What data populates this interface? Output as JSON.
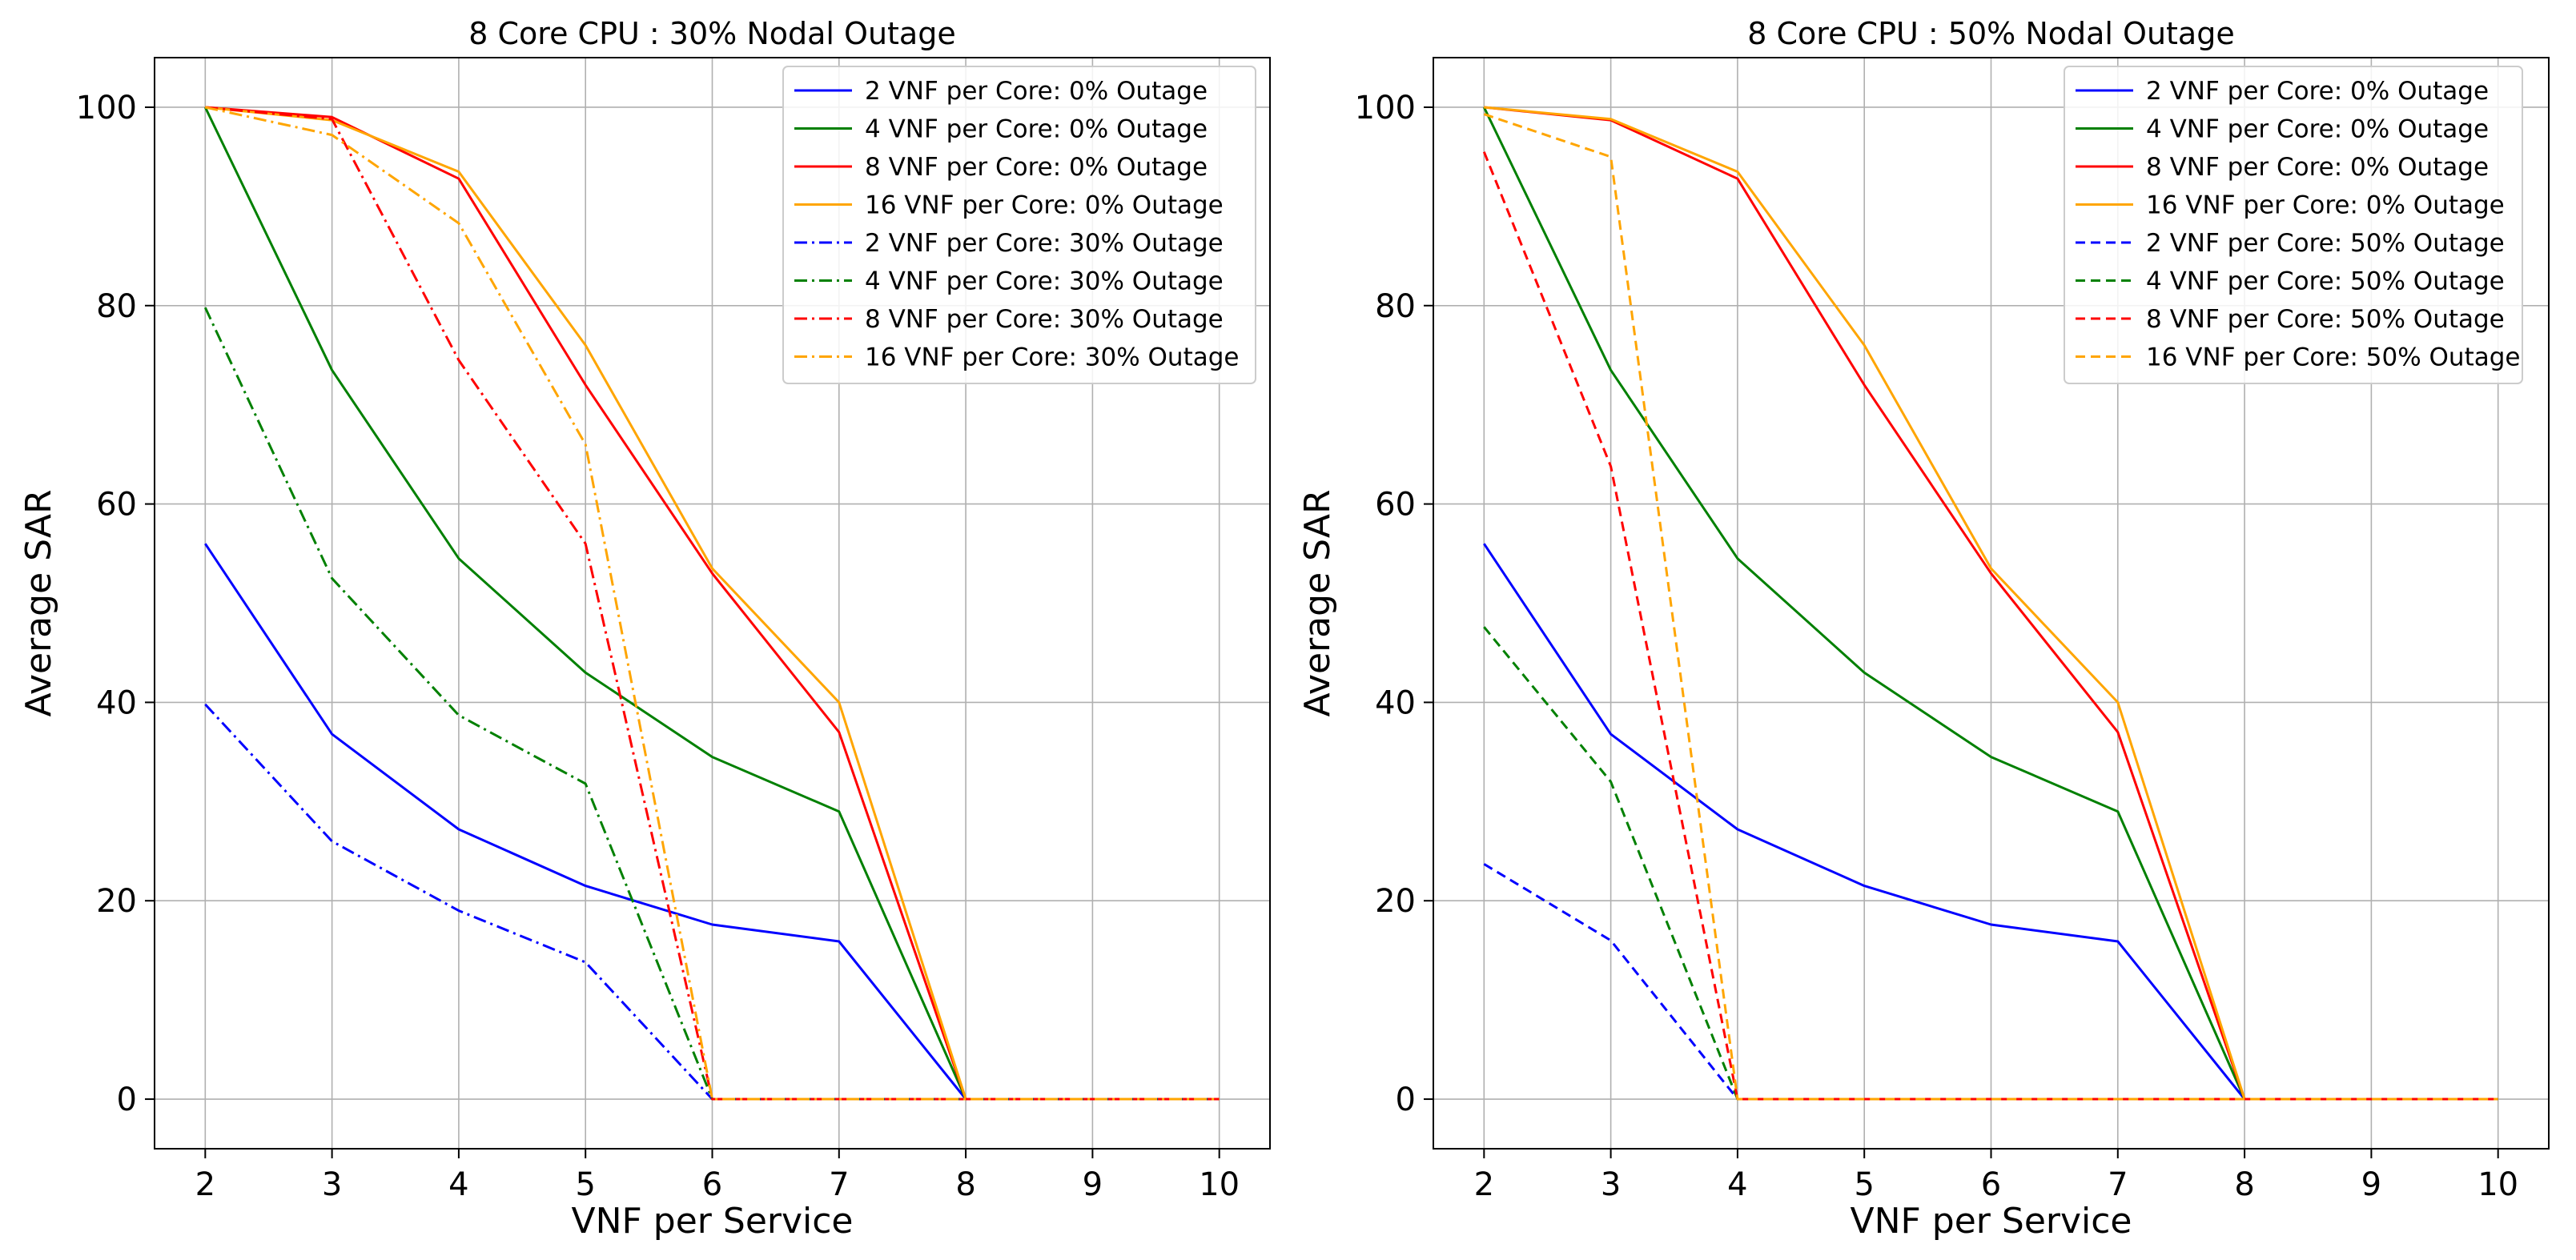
{
  "chart_data": [
    {
      "type": "line",
      "title": "8 Core CPU : 30% Nodal Outage",
      "xlabel": "VNF per Service",
      "ylabel": "Average SAR",
      "x": [
        2,
        3,
        4,
        5,
        6,
        7,
        8,
        9,
        10
      ],
      "xlim": [
        1.6,
        10.4
      ],
      "ylim": [
        -5,
        105
      ],
      "xticks": [
        "2",
        "3",
        "4",
        "5",
        "6",
        "7",
        "8",
        "9",
        "10"
      ],
      "yticks": [
        "0",
        "20",
        "40",
        "60",
        "80",
        "100"
      ],
      "legend_position": "top-right",
      "series": [
        {
          "name": "2 VNF per Core: 0% Outage",
          "color": "#0000ff",
          "style": "solid",
          "values": [
            56,
            36.8,
            27.2,
            21.5,
            17.6,
            15.9,
            0,
            0,
            0
          ]
        },
        {
          "name": "4 VNF per Core: 0% Outage",
          "color": "#008000",
          "style": "solid",
          "values": [
            100,
            73.5,
            54.5,
            43,
            34.5,
            29,
            0,
            0,
            0
          ]
        },
        {
          "name": "8 VNF per Core: 0% Outage",
          "color": "#ff0000",
          "style": "solid",
          "values": [
            100,
            99,
            92.8,
            72,
            53,
            37,
            0,
            0,
            0
          ]
        },
        {
          "name": "16 VNF per Core: 0% Outage",
          "color": "#ffa500",
          "style": "solid",
          "values": [
            100,
            98.7,
            93.5,
            76,
            53.5,
            40,
            0,
            0,
            0
          ]
        },
        {
          "name": "2 VNF per Core: 30% Outage",
          "color": "#0000ff",
          "style": "dashdot",
          "values": [
            39.8,
            26,
            19,
            13.8,
            0,
            0,
            0,
            0,
            0
          ]
        },
        {
          "name": "4 VNF per Core: 30% Outage",
          "color": "#008000",
          "style": "dashdot",
          "values": [
            79.8,
            52.5,
            38.7,
            31.8,
            0,
            0,
            0,
            0,
            0
          ]
        },
        {
          "name": "8 VNF per Core: 30% Outage",
          "color": "#ff0000",
          "style": "dashdot",
          "values": [
            100,
            98.8,
            74.5,
            56,
            0,
            0,
            0,
            0,
            0
          ]
        },
        {
          "name": "16 VNF per Core: 30% Outage",
          "color": "#ffa500",
          "style": "dashdot",
          "values": [
            100,
            97.2,
            88.3,
            66,
            0,
            0,
            0,
            0,
            0
          ]
        }
      ]
    },
    {
      "type": "line",
      "title": "8 Core CPU : 50% Nodal Outage",
      "xlabel": "VNF per Service",
      "ylabel": "Average SAR",
      "x": [
        2,
        3,
        4,
        5,
        6,
        7,
        8,
        9,
        10
      ],
      "xlim": [
        1.6,
        10.4
      ],
      "ylim": [
        -5,
        105
      ],
      "xticks": [
        "2",
        "3",
        "4",
        "5",
        "6",
        "7",
        "8",
        "9",
        "10"
      ],
      "yticks": [
        "0",
        "20",
        "40",
        "60",
        "80",
        "100"
      ],
      "legend_position": "top-right",
      "series": [
        {
          "name": "2 VNF per Core: 0% Outage",
          "color": "#0000ff",
          "style": "solid",
          "values": [
            56,
            36.8,
            27.2,
            21.5,
            17.6,
            15.9,
            0,
            0,
            0
          ]
        },
        {
          "name": "4 VNF per Core: 0% Outage",
          "color": "#008000",
          "style": "solid",
          "values": [
            100,
            73.5,
            54.5,
            43,
            34.5,
            29,
            0,
            0,
            0
          ]
        },
        {
          "name": "8 VNF per Core: 0% Outage",
          "color": "#ff0000",
          "style": "solid",
          "values": [
            100,
            98.7,
            92.8,
            72,
            53,
            37,
            0,
            0,
            0
          ]
        },
        {
          "name": "16 VNF per Core: 0% Outage",
          "color": "#ffa500",
          "style": "solid",
          "values": [
            100,
            98.8,
            93.5,
            76,
            53.5,
            40,
            0,
            0,
            0
          ]
        },
        {
          "name": "2 VNF per Core: 50% Outage",
          "color": "#0000ff",
          "style": "dashed",
          "values": [
            23.7,
            16,
            0,
            0,
            0,
            0,
            0,
            0,
            0
          ]
        },
        {
          "name": "4 VNF per Core: 50% Outage",
          "color": "#008000",
          "style": "dashed",
          "values": [
            47.6,
            32,
            0,
            0,
            0,
            0,
            0,
            0,
            0
          ]
        },
        {
          "name": "8 VNF per Core: 50% Outage",
          "color": "#ff0000",
          "style": "dashed",
          "values": [
            95.5,
            63.8,
            0,
            0,
            0,
            0,
            0,
            0,
            0
          ]
        },
        {
          "name": "16 VNF per Core: 50% Outage",
          "color": "#ffa500",
          "style": "dashed",
          "values": [
            99.3,
            95,
            0,
            0,
            0,
            0,
            0,
            0,
            0
          ]
        }
      ]
    }
  ]
}
